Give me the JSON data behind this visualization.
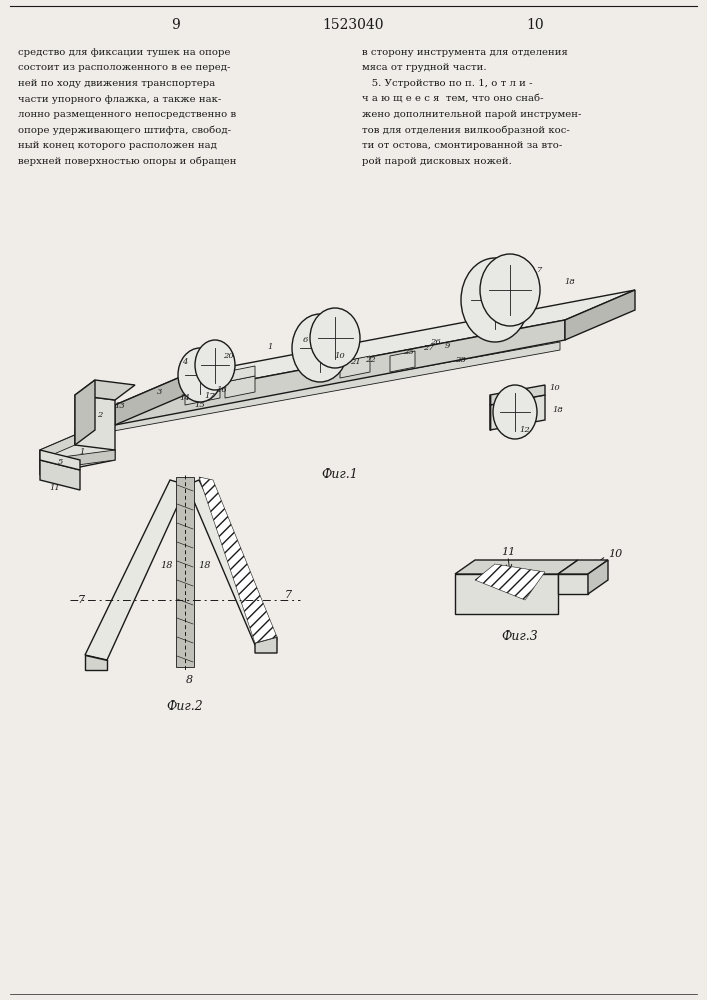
{
  "page_left": "9",
  "page_center": "1523040",
  "page_right": "10",
  "left_col_text": [
    "средство для фиксации тушек на опоре",
    "состоит из расположенного в ее перед-",
    "ней по ходу движения транспортера",
    "части упорного флажка, а также нак-",
    "лонно размещенного непосредственно в",
    "опоре удерживающего штифта, свобод-",
    "ный конец которого расположен над",
    "верхней поверхностью опоры и обращен"
  ],
  "right_col_text": [
    "в сторону инструмента для отделения",
    "мяса от грудной части.",
    "   5. Устройство по п. 1, о т л и -",
    "ч а ю щ е е с я  тем, что оно снаб-",
    "жено дополнительной парой инструмен-",
    "тов для отделения вилкообразной кос-",
    "ти от остова, смонтированной за вто-",
    "рой парой дисковых ножей."
  ],
  "fig1_caption": "Фиг.1",
  "fig2_caption": "Фиг.2",
  "fig3_caption": "Фиг.3",
  "bg_color": "#f0ede8",
  "line_color": "#1a1a1a"
}
